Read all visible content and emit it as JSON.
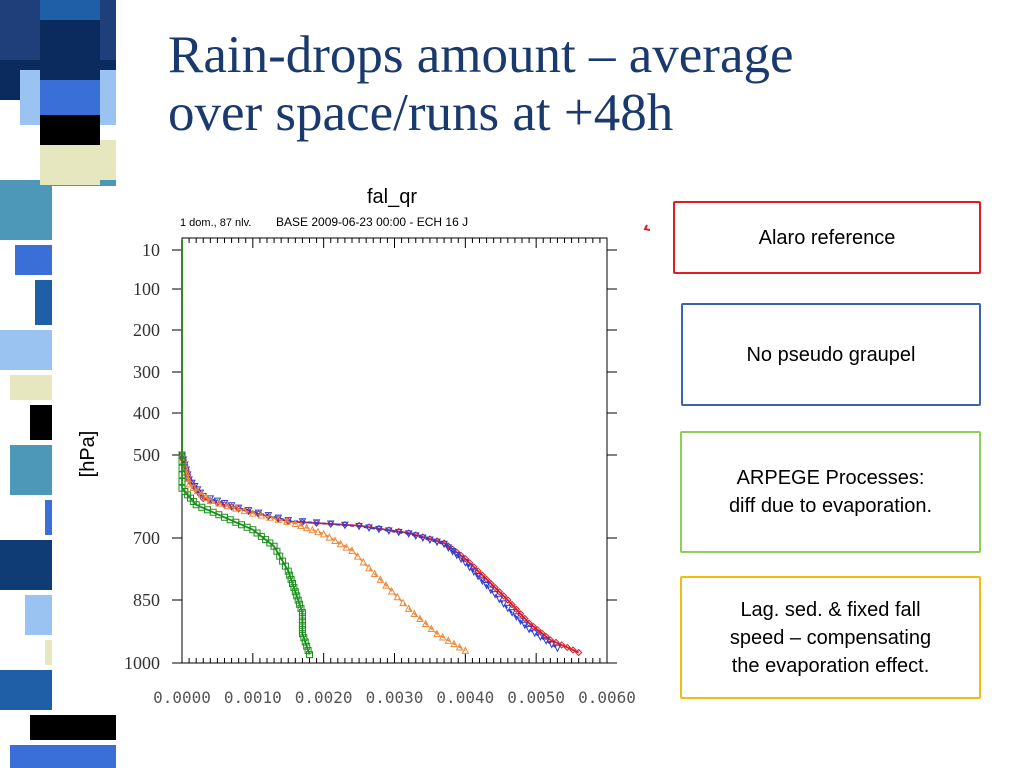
{
  "slide": {
    "title_lines": [
      "Rain-drops amount – average",
      "over space/runs at +48h"
    ],
    "stripe_colors": [
      "#0b2a5e",
      "#3b6fd8",
      "#000000",
      "#9ac3f2",
      "#e6e6bf",
      "#4d97b8",
      "#1f5fa8",
      "#ffffff",
      "#0f3c74"
    ]
  },
  "legend": [
    {
      "lines": [
        "Alaro reference"
      ],
      "color": "#e01c24"
    },
    {
      "lines": [
        "No pseudo graupel"
      ],
      "color": "#3a63b3"
    },
    {
      "lines": [
        "ARPEGE Processes:",
        "diff due to evaporation."
      ],
      "color": "#8dcf57"
    },
    {
      "lines": [
        "Lag. sed. & fixed fall",
        "speed – compensating",
        "the evaporation effect."
      ],
      "color": "#f2bd0f"
    }
  ],
  "chart_data": {
    "type": "line",
    "title": "fal_qr",
    "subtitle_left": "1 dom., 87 nlv.",
    "subtitle_right": "BASE 2009-06-23 00:00 - ECH 16 J",
    "ylabel": "[hPa]",
    "xlabel": "",
    "xlim": [
      0,
      0.006
    ],
    "x_ticks": [
      "0.0000",
      "0.0010",
      "0.0020",
      "0.0030",
      "0.0040",
      "0.0050",
      "0.0060"
    ],
    "y_ticks": [
      "10",
      "100",
      "200",
      "300",
      "400",
      "500",
      "700",
      "850",
      "1000"
    ],
    "y_tick_values": [
      10,
      100,
      200,
      300,
      400,
      500,
      700,
      850,
      1000
    ],
    "grid": false,
    "series": [
      {
        "color": "#e01c24",
        "marker": "diamond",
        "dash": "none",
        "points": [
          [
            0.0,
            10
          ],
          [
            0.0,
            100
          ],
          [
            0.0,
            300
          ],
          [
            0.0,
            500
          ],
          [
            0.0001,
            560
          ],
          [
            0.0003,
            605
          ],
          [
            0.0008,
            630
          ],
          [
            0.0015,
            660
          ],
          [
            0.0025,
            670
          ],
          [
            0.0032,
            688
          ],
          [
            0.0037,
            712
          ],
          [
            0.004,
            750
          ],
          [
            0.0043,
            800
          ],
          [
            0.0046,
            850
          ],
          [
            0.0049,
            905
          ],
          [
            0.0052,
            945
          ],
          [
            0.0056,
            975
          ]
        ]
      },
      {
        "color": "#2a3fd6",
        "marker": "triangle-down",
        "dash": "4,3",
        "points": [
          [
            0.0,
            10
          ],
          [
            0.0,
            100
          ],
          [
            0.0,
            300
          ],
          [
            0.0,
            500
          ],
          [
            0.0001,
            560
          ],
          [
            0.0003,
            600
          ],
          [
            0.0008,
            628
          ],
          [
            0.0015,
            658
          ],
          [
            0.0025,
            672
          ],
          [
            0.0032,
            690
          ],
          [
            0.0037,
            715
          ],
          [
            0.004,
            760
          ],
          [
            0.0043,
            815
          ],
          [
            0.0046,
            870
          ],
          [
            0.0049,
            920
          ],
          [
            0.0053,
            965
          ]
        ]
      },
      {
        "color": "#f08a3c",
        "marker": "triangle",
        "dash": "4,3",
        "points": [
          [
            0.0,
            10
          ],
          [
            0.0,
            100
          ],
          [
            0.0,
            300
          ],
          [
            0.0,
            500
          ],
          [
            0.0001,
            570
          ],
          [
            0.0004,
            610
          ],
          [
            0.001,
            640
          ],
          [
            0.0016,
            665
          ],
          [
            0.002,
            690
          ],
          [
            0.0024,
            730
          ],
          [
            0.0028,
            800
          ],
          [
            0.0032,
            870
          ],
          [
            0.0036,
            930
          ],
          [
            0.004,
            970
          ]
        ]
      },
      {
        "color": "#1a8f1a",
        "marker": "square",
        "dash": "none",
        "points": [
          [
            0.0,
            10
          ],
          [
            0.0,
            100
          ],
          [
            0.0,
            300
          ],
          [
            0.0,
            500
          ],
          [
            0.0,
            580
          ],
          [
            0.0002,
            620
          ],
          [
            0.0006,
            650
          ],
          [
            0.001,
            680
          ],
          [
            0.0013,
            720
          ],
          [
            0.0015,
            780
          ],
          [
            0.0016,
            830
          ],
          [
            0.0017,
            880
          ],
          [
            0.0017,
            930
          ],
          [
            0.0018,
            980
          ]
        ]
      }
    ]
  }
}
